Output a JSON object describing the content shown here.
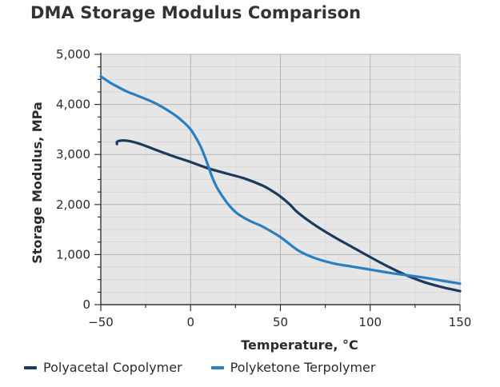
{
  "chart_data": {
    "type": "line",
    "title": "DMA Storage Modulus Comparison",
    "xlabel": "Temperature, °C",
    "ylabel": "Storage Modulus, MPa",
    "xlim": [
      -50,
      150
    ],
    "ylim": [
      0,
      5000
    ],
    "xticks": [
      -50,
      0,
      50,
      100,
      150
    ],
    "yticks": [
      0,
      1000,
      2000,
      3000,
      4000,
      5000
    ],
    "ytick_labels": [
      "0",
      "1,000",
      "2,000",
      "3,000",
      "4,000",
      "5,000"
    ],
    "grid": true,
    "legend_position": "bottom",
    "series": [
      {
        "name": "Polyacetal Copolymer",
        "color": "#1b3a5c",
        "x": [
          -41,
          -41,
          -40,
          -37,
          -33,
          -28,
          -20,
          -10,
          0,
          10,
          20,
          30,
          40,
          45,
          50,
          55,
          60,
          70,
          80,
          90,
          100,
          110,
          120,
          130,
          140,
          150
        ],
        "y": [
          3210,
          3250,
          3270,
          3280,
          3260,
          3210,
          3100,
          2970,
          2850,
          2720,
          2620,
          2520,
          2380,
          2280,
          2160,
          2010,
          1830,
          1570,
          1350,
          1150,
          950,
          760,
          590,
          450,
          350,
          270
        ]
      },
      {
        "name": "Polyketone Terpolymer",
        "color": "#2a7fc1",
        "x": [
          -50,
          -45,
          -40,
          -35,
          -30,
          -20,
          -10,
          -5,
          0,
          5,
          8,
          10,
          12,
          15,
          20,
          25,
          30,
          35,
          40,
          50,
          60,
          70,
          80,
          90,
          100,
          110,
          120,
          130,
          140,
          150
        ],
        "y": [
          4560,
          4440,
          4340,
          4250,
          4180,
          4030,
          3820,
          3680,
          3500,
          3200,
          2950,
          2750,
          2550,
          2320,
          2050,
          1850,
          1730,
          1640,
          1560,
          1350,
          1080,
          920,
          820,
          760,
          700,
          640,
          590,
          540,
          480,
          420
        ]
      }
    ]
  }
}
